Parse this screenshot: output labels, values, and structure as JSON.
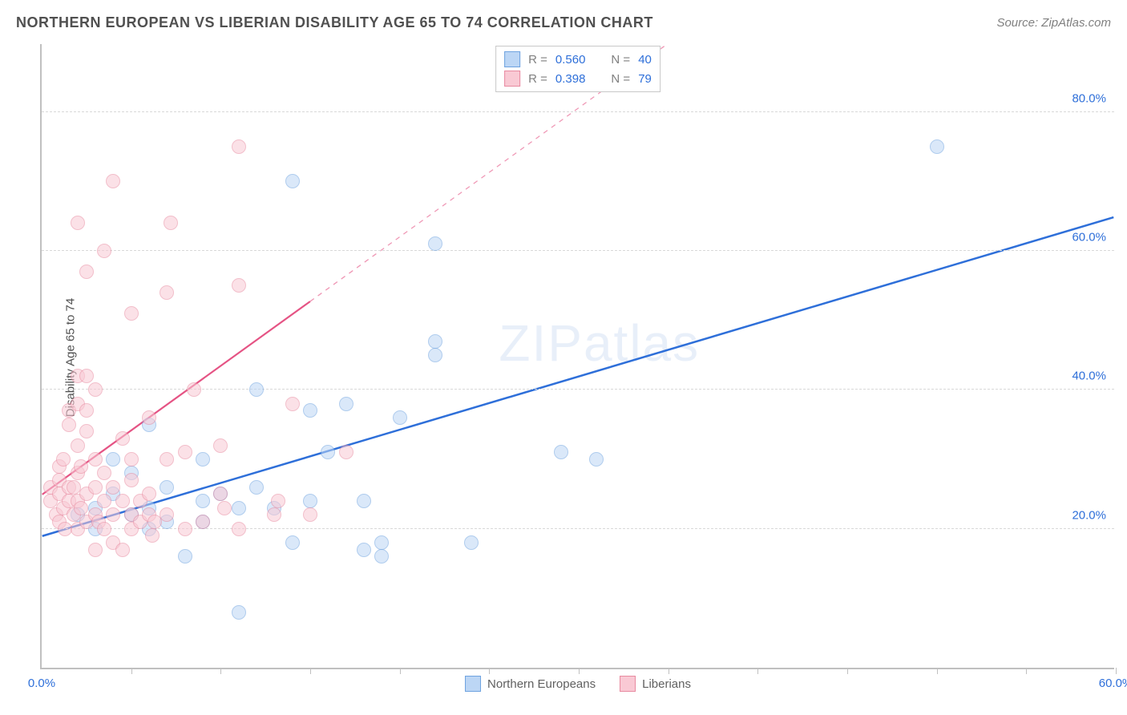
{
  "header": {
    "title": "NORTHERN EUROPEAN VS LIBERIAN DISABILITY AGE 65 TO 74 CORRELATION CHART",
    "source": "Source: ZipAtlas.com"
  },
  "watermark": "ZIPatlas",
  "chart": {
    "type": "scatter",
    "ylabel": "Disability Age 65 to 74",
    "xlim": [
      0,
      60
    ],
    "ylim": [
      0,
      90
    ],
    "xtick_step": 5,
    "x_labeled_ticks": [
      0,
      60
    ],
    "y_labeled_ticks": [
      20,
      40,
      60,
      80
    ],
    "tick_suffix": "%",
    "tick_decimals": 1,
    "background_color": "#ffffff",
    "grid_color": "#d8d8d8",
    "axis_color": "#c0c0c0",
    "tick_label_color": "#2e6fd9",
    "marker_radius": 9,
    "marker_opacity": 0.55,
    "series": [
      {
        "name": "Northern Europeans",
        "color_fill": "#bcd6f5",
        "color_stroke": "#6fa3e0",
        "r": "0.560",
        "n": "40",
        "trend": {
          "x1": 0,
          "y1": 19,
          "x2": 60,
          "y2": 65,
          "solid_until_x": 60,
          "width": 2.5,
          "color": "#2e6fd9"
        },
        "points": [
          [
            2,
            22
          ],
          [
            3,
            23
          ],
          [
            4,
            25
          ],
          [
            5,
            22
          ],
          [
            5,
            28
          ],
          [
            6,
            23
          ],
          [
            6,
            35
          ],
          [
            7,
            21
          ],
          [
            8,
            16
          ],
          [
            9,
            30
          ],
          [
            9,
            24
          ],
          [
            10,
            25
          ],
          [
            11,
            23
          ],
          [
            11,
            8
          ],
          [
            12,
            26
          ],
          [
            12,
            40
          ],
          [
            13,
            23
          ],
          [
            14,
            18
          ],
          [
            14,
            70
          ],
          [
            15,
            24
          ],
          [
            15,
            37
          ],
          [
            16,
            31
          ],
          [
            17,
            38
          ],
          [
            18,
            17
          ],
          [
            18,
            24
          ],
          [
            19,
            18
          ],
          [
            19,
            16
          ],
          [
            20,
            36
          ],
          [
            22,
            47
          ],
          [
            22,
            45
          ],
          [
            22,
            61
          ],
          [
            24,
            18
          ],
          [
            29,
            31
          ],
          [
            31,
            30
          ],
          [
            50,
            75
          ],
          [
            3,
            20
          ],
          [
            4,
            30
          ],
          [
            7,
            26
          ],
          [
            9,
            21
          ],
          [
            6,
            20
          ]
        ]
      },
      {
        "name": "Liberians",
        "color_fill": "#f9c9d4",
        "color_stroke": "#e88aa0",
        "r": "0.398",
        "n": "79",
        "trend": {
          "x1": 0,
          "y1": 25,
          "x2": 35,
          "y2": 90,
          "solid_until_x": 15,
          "width": 2.2,
          "color": "#e55384"
        },
        "points": [
          [
            0.5,
            24
          ],
          [
            0.5,
            26
          ],
          [
            0.8,
            22
          ],
          [
            1,
            21
          ],
          [
            1,
            25
          ],
          [
            1,
            27
          ],
          [
            1,
            29
          ],
          [
            1.2,
            23
          ],
          [
            1.2,
            30
          ],
          [
            1.3,
            20
          ],
          [
            1.5,
            24
          ],
          [
            1.5,
            26
          ],
          [
            1.5,
            35
          ],
          [
            1.5,
            37
          ],
          [
            1.8,
            22
          ],
          [
            1.8,
            26
          ],
          [
            2,
            20
          ],
          [
            2,
            24
          ],
          [
            2,
            28
          ],
          [
            2,
            32
          ],
          [
            2,
            38
          ],
          [
            2,
            42
          ],
          [
            2,
            64
          ],
          [
            2.2,
            23
          ],
          [
            2.2,
            29
          ],
          [
            2.5,
            21
          ],
          [
            2.5,
            25
          ],
          [
            2.5,
            34
          ],
          [
            2.5,
            37
          ],
          [
            2.5,
            42
          ],
          [
            2.5,
            57
          ],
          [
            3,
            17
          ],
          [
            3,
            22
          ],
          [
            3,
            26
          ],
          [
            3,
            30
          ],
          [
            3,
            40
          ],
          [
            3.2,
            21
          ],
          [
            3.5,
            20
          ],
          [
            3.5,
            24
          ],
          [
            3.5,
            28
          ],
          [
            3.5,
            60
          ],
          [
            4,
            18
          ],
          [
            4,
            22
          ],
          [
            4,
            26
          ],
          [
            4,
            70
          ],
          [
            4.5,
            17
          ],
          [
            4.5,
            24
          ],
          [
            4.5,
            33
          ],
          [
            5,
            20
          ],
          [
            5,
            22
          ],
          [
            5,
            27
          ],
          [
            5,
            30
          ],
          [
            5,
            51
          ],
          [
            5.5,
            21
          ],
          [
            5.5,
            24
          ],
          [
            6,
            22
          ],
          [
            6,
            25
          ],
          [
            6,
            36
          ],
          [
            6.2,
            19
          ],
          [
            6.3,
            21
          ],
          [
            7,
            22
          ],
          [
            7,
            30
          ],
          [
            7,
            54
          ],
          [
            7.2,
            64
          ],
          [
            8,
            20
          ],
          [
            8,
            31
          ],
          [
            8.5,
            40
          ],
          [
            9,
            21
          ],
          [
            10,
            25
          ],
          [
            10,
            32
          ],
          [
            10.2,
            23
          ],
          [
            11,
            20
          ],
          [
            11,
            55
          ],
          [
            11,
            75
          ],
          [
            13,
            22
          ],
          [
            13.2,
            24
          ],
          [
            14,
            38
          ],
          [
            15,
            22
          ],
          [
            17,
            31
          ]
        ]
      }
    ],
    "legend_top": {
      "r_label": "R =",
      "n_label": "N ="
    },
    "legend_bottom": [
      {
        "label": "Northern Europeans",
        "fill": "#bcd6f5",
        "stroke": "#6fa3e0"
      },
      {
        "label": "Liberians",
        "fill": "#f9c9d4",
        "stroke": "#e88aa0"
      }
    ]
  }
}
